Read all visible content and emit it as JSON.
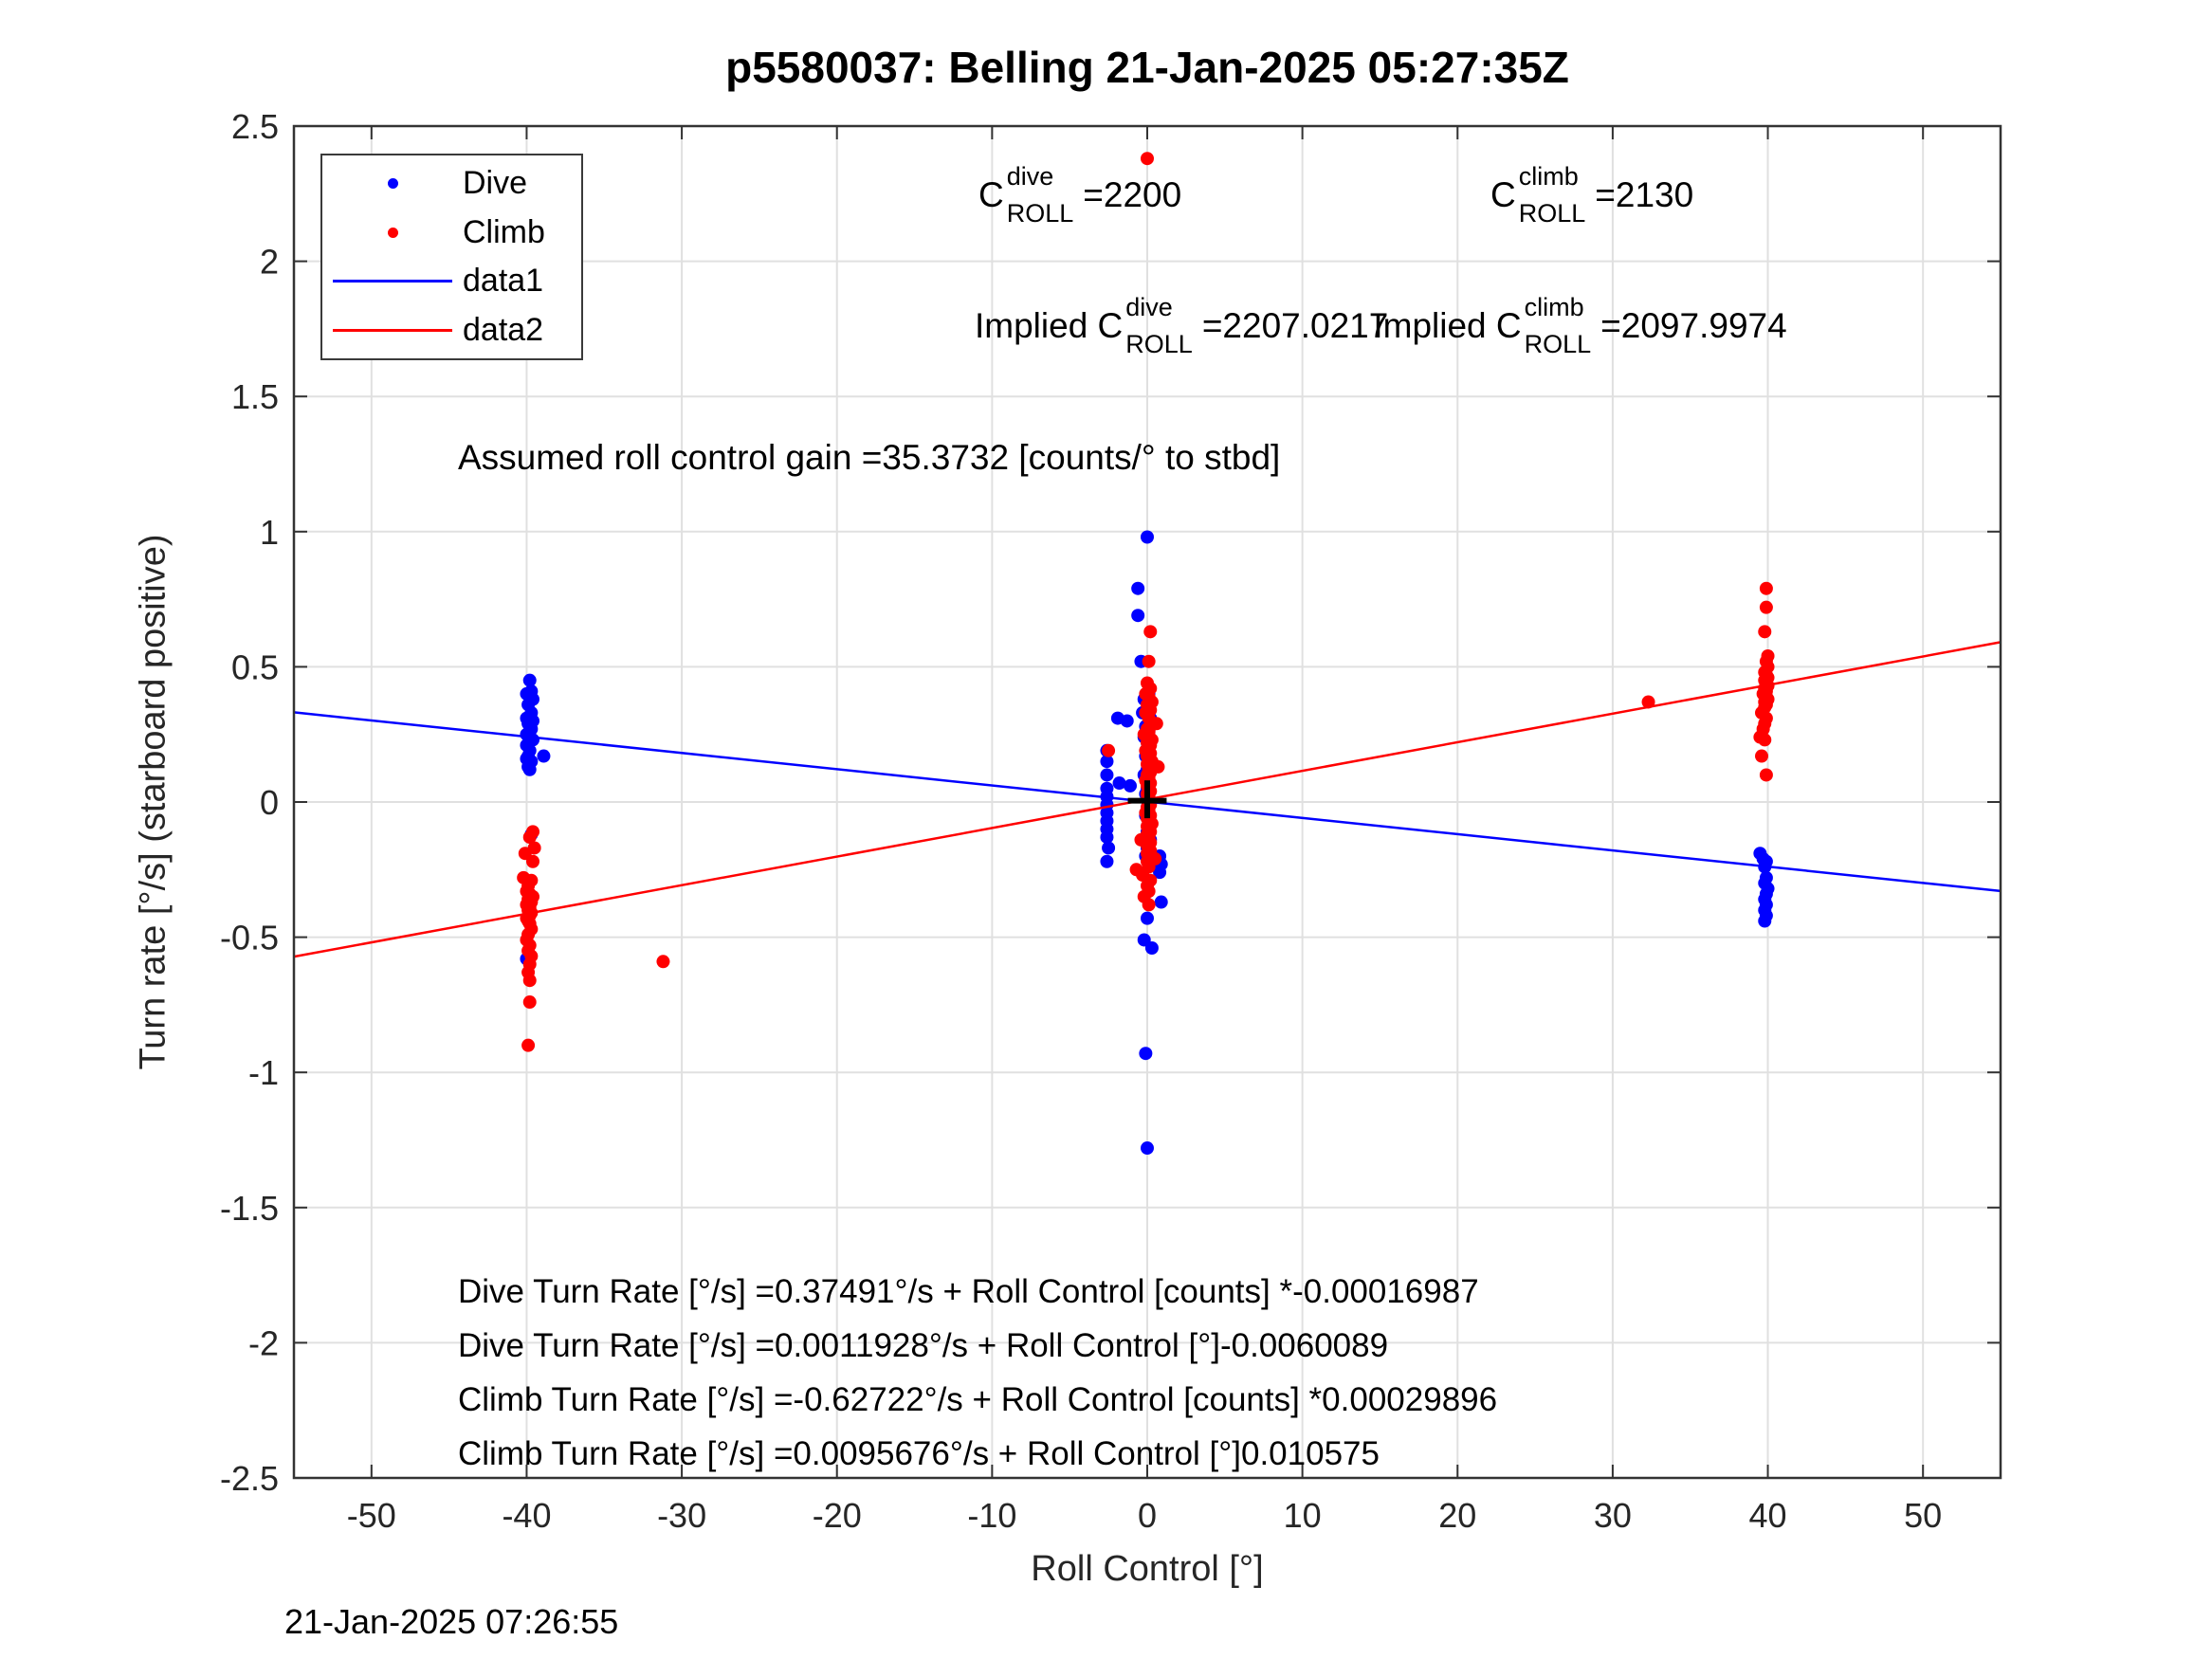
{
  "figure": {
    "title": "p5580037: Belling 21-Jan-2025 05:27:35Z",
    "footer_timestamp": "21-Jan-2025 07:26:55"
  },
  "annotations": {
    "cdive": {
      "prefix": "C",
      "sup": "dive",
      "sub": "ROLL",
      "value": "=2200"
    },
    "cclimb": {
      "prefix": "C",
      "sup": "climb",
      "sub": "ROLL",
      "value": "=2130"
    },
    "implied_dive": {
      "prefix": "Implied C",
      "sup": "dive",
      "sub": "ROLL",
      "value": "=2207.0217"
    },
    "implied_climb": {
      "prefix": "Implied C",
      "sup": "climb",
      "sub": "ROLL",
      "value": "=2097.9974"
    },
    "assumed_gain": "Assumed roll control gain =35.3732 [counts/° to stbd]",
    "equations": [
      "Dive Turn Rate [°/s] =0.37491°/s + Roll Control [counts] *-0.00016987",
      "Dive Turn Rate [°/s] =0.0011928°/s + Roll Control [°]-0.0060089",
      "Climb Turn Rate [°/s] =-0.62722°/s + Roll Control [counts] *0.00029896",
      "Climb Turn Rate [°/s] =0.0095676°/s + Roll Control [°]0.010575"
    ]
  },
  "legend": {
    "items": [
      {
        "label": "Dive",
        "type": "dot",
        "color": "#0000ff"
      },
      {
        "label": "Climb",
        "type": "dot",
        "color": "#ff0000"
      },
      {
        "label": "data1",
        "type": "line",
        "color": "#0000ff"
      },
      {
        "label": "data2",
        "type": "line",
        "color": "#ff0000"
      }
    ]
  },
  "chart_data": {
    "type": "scatter",
    "title": "p5580037: Belling 21-Jan-2025 05:27:35Z",
    "xlabel": "Roll Control [°]",
    "ylabel": "Turn rate [°/s] (starboard positive)",
    "xlim": [
      -55,
      55
    ],
    "ylim": [
      -2.5,
      2.5
    ],
    "grid": true,
    "grid_color": "#e0e0e0",
    "axis_color": "#333333",
    "tick_label_color": "#262626",
    "xticks": [
      -50,
      -40,
      -30,
      -20,
      -10,
      0,
      10,
      20,
      30,
      40,
      50
    ],
    "xticklabels": [
      "-50",
      "-40",
      "-30",
      "-20",
      "-10",
      "0",
      "10",
      "20",
      "30",
      "40",
      "50"
    ],
    "yticks": [
      -2.5,
      -2,
      -1.5,
      -1,
      -0.5,
      0,
      0.5,
      1,
      1.5,
      2,
      2.5
    ],
    "yticklabels": [
      "-2.5",
      "-2",
      "-1.5",
      "-1",
      "-0.5",
      "0",
      "0.5",
      "1",
      "1.5",
      "2",
      "2.5"
    ],
    "series": [
      {
        "name": "Dive",
        "type": "scatter",
        "color": "#0000ff",
        "marker_radius": 7,
        "points": [
          [
            -39.8,
            0.45
          ],
          [
            -39.7,
            0.41
          ],
          [
            -40.0,
            0.4
          ],
          [
            -39.6,
            0.38
          ],
          [
            -39.9,
            0.36
          ],
          [
            -39.7,
            0.33
          ],
          [
            -40.0,
            0.31
          ],
          [
            -39.6,
            0.3
          ],
          [
            -39.9,
            0.29
          ],
          [
            -39.7,
            0.27
          ],
          [
            -40.0,
            0.25
          ],
          [
            -39.8,
            0.24
          ],
          [
            -39.6,
            0.23
          ],
          [
            -40.0,
            0.21
          ],
          [
            -39.8,
            0.19
          ],
          [
            -39.9,
            0.17
          ],
          [
            -38.9,
            0.17
          ],
          [
            -40.0,
            0.16
          ],
          [
            -39.7,
            0.15
          ],
          [
            -39.9,
            0.13
          ],
          [
            -39.8,
            0.12
          ],
          [
            -39.7,
            -0.12
          ],
          [
            -40.0,
            -0.58
          ],
          [
            0.0,
            0.98
          ],
          [
            -0.6,
            0.79
          ],
          [
            -0.6,
            0.69
          ],
          [
            -0.4,
            0.52
          ],
          [
            0.1,
            0.4
          ],
          [
            -0.2,
            0.38
          ],
          [
            0.1,
            0.36
          ],
          [
            -0.3,
            0.33
          ],
          [
            -1.3,
            0.3
          ],
          [
            0.2,
            0.31
          ],
          [
            -1.9,
            0.31
          ],
          [
            -0.1,
            0.28
          ],
          [
            0.1,
            0.26
          ],
          [
            -0.2,
            0.24
          ],
          [
            0.0,
            0.22
          ],
          [
            0.1,
            0.2
          ],
          [
            -0.1,
            0.17
          ],
          [
            0.2,
            0.15
          ],
          [
            0.0,
            0.12
          ],
          [
            -0.2,
            0.1
          ],
          [
            0.1,
            0.08
          ],
          [
            0.0,
            0.05
          ],
          [
            -0.1,
            0.03
          ],
          [
            0.1,
            0.01
          ],
          [
            0.0,
            -0.02
          ],
          [
            -0.1,
            -0.05
          ],
          [
            0.1,
            -0.08
          ],
          [
            0.0,
            -0.11
          ],
          [
            0.2,
            -0.14
          ],
          [
            0.0,
            -0.17
          ],
          [
            -0.1,
            -0.2
          ],
          [
            0.1,
            -0.23
          ],
          [
            -2.6,
            0.19
          ],
          [
            -2.6,
            0.15
          ],
          [
            -2.6,
            0.1
          ],
          [
            -1.8,
            0.07
          ],
          [
            -1.1,
            0.06
          ],
          [
            -2.6,
            0.05
          ],
          [
            -2.6,
            0.02
          ],
          [
            -2.6,
            -0.01
          ],
          [
            -2.6,
            -0.04
          ],
          [
            -2.6,
            -0.07
          ],
          [
            -2.6,
            -0.1
          ],
          [
            -2.6,
            -0.13
          ],
          [
            -2.5,
            -0.17
          ],
          [
            -2.6,
            -0.22
          ],
          [
            0.8,
            -0.2
          ],
          [
            0.9,
            -0.23
          ],
          [
            0.8,
            -0.26
          ],
          [
            0.9,
            -0.37
          ],
          [
            0.0,
            -0.43
          ],
          [
            -0.2,
            -0.51
          ],
          [
            0.3,
            -0.54
          ],
          [
            -0.1,
            -0.93
          ],
          [
            0.0,
            -1.28
          ],
          [
            39.5,
            -0.19
          ],
          [
            39.7,
            -0.21
          ],
          [
            39.9,
            -0.22
          ],
          [
            39.8,
            -0.24
          ],
          [
            39.9,
            -0.28
          ],
          [
            39.8,
            -0.3
          ],
          [
            40.0,
            -0.32
          ],
          [
            39.9,
            -0.34
          ],
          [
            39.8,
            -0.36
          ],
          [
            39.9,
            -0.38
          ],
          [
            39.8,
            -0.4
          ],
          [
            39.9,
            -0.42
          ],
          [
            39.8,
            -0.44
          ]
        ]
      },
      {
        "name": "Climb",
        "type": "scatter",
        "color": "#ff0000",
        "marker_radius": 7,
        "points": [
          [
            0.0,
            2.38
          ],
          [
            -39.6,
            -0.11
          ],
          [
            -39.8,
            -0.13
          ],
          [
            -39.5,
            -0.17
          ],
          [
            -40.1,
            -0.19
          ],
          [
            -39.6,
            -0.22
          ],
          [
            -40.2,
            -0.28
          ],
          [
            -39.7,
            -0.29
          ],
          [
            -39.9,
            -0.31
          ],
          [
            -40.0,
            -0.33
          ],
          [
            -39.8,
            -0.34
          ],
          [
            -39.6,
            -0.35
          ],
          [
            -39.9,
            -0.36
          ],
          [
            -39.7,
            -0.37
          ],
          [
            -40.0,
            -0.38
          ],
          [
            -39.8,
            -0.39
          ],
          [
            -39.9,
            -0.4
          ],
          [
            -39.7,
            -0.41
          ],
          [
            -39.8,
            -0.42
          ],
          [
            -40.0,
            -0.43
          ],
          [
            -39.9,
            -0.44
          ],
          [
            -39.8,
            -0.45
          ],
          [
            -39.7,
            -0.47
          ],
          [
            -39.9,
            -0.49
          ],
          [
            -40.0,
            -0.51
          ],
          [
            -39.8,
            -0.53
          ],
          [
            -39.9,
            -0.55
          ],
          [
            -39.7,
            -0.57
          ],
          [
            -39.8,
            -0.6
          ],
          [
            -39.9,
            -0.63
          ],
          [
            -39.8,
            -0.66
          ],
          [
            -39.8,
            -0.74
          ],
          [
            -39.9,
            -0.9
          ],
          [
            -31.2,
            -0.59
          ],
          [
            0.2,
            0.63
          ],
          [
            0.1,
            0.52
          ],
          [
            0.0,
            0.44
          ],
          [
            0.2,
            0.42
          ],
          [
            -0.1,
            0.4
          ],
          [
            0.1,
            0.39
          ],
          [
            0.3,
            0.37
          ],
          [
            0.0,
            0.36
          ],
          [
            0.2,
            0.34
          ],
          [
            -0.1,
            0.33
          ],
          [
            0.1,
            0.31
          ],
          [
            0.6,
            0.29
          ],
          [
            0.2,
            0.28
          ],
          [
            0.0,
            0.27
          ],
          [
            0.1,
            0.26
          ],
          [
            -0.2,
            0.25
          ],
          [
            0.1,
            0.24
          ],
          [
            0.3,
            0.23
          ],
          [
            0.0,
            0.22
          ],
          [
            0.2,
            0.21
          ],
          [
            0.1,
            0.2
          ],
          [
            -0.1,
            0.19
          ],
          [
            -2.5,
            0.19
          ],
          [
            0.2,
            0.18
          ],
          [
            0.0,
            0.17
          ],
          [
            0.1,
            0.16
          ],
          [
            0.3,
            0.15
          ],
          [
            0.0,
            0.14
          ],
          [
            0.7,
            0.13
          ],
          [
            0.1,
            0.12
          ],
          [
            0.2,
            0.11
          ],
          [
            0.0,
            0.1
          ],
          [
            0.1,
            0.09
          ],
          [
            -0.1,
            0.08
          ],
          [
            0.2,
            0.07
          ],
          [
            0.0,
            0.06
          ],
          [
            0.1,
            0.05
          ],
          [
            0.2,
            0.04
          ],
          [
            0.0,
            0.03
          ],
          [
            0.1,
            0.02
          ],
          [
            0.0,
            0.01
          ],
          [
            0.1,
            0.0
          ],
          [
            0.2,
            -0.01
          ],
          [
            0.0,
            -0.02
          ],
          [
            0.1,
            -0.03
          ],
          [
            -0.1,
            -0.04
          ],
          [
            0.2,
            -0.05
          ],
          [
            0.0,
            -0.06
          ],
          [
            0.1,
            -0.07
          ],
          [
            0.3,
            -0.08
          ],
          [
            0.0,
            -0.09
          ],
          [
            0.1,
            -0.1
          ],
          [
            0.2,
            -0.11
          ],
          [
            0.0,
            -0.12
          ],
          [
            0.1,
            -0.13
          ],
          [
            -0.4,
            -0.14
          ],
          [
            0.2,
            -0.15
          ],
          [
            0.0,
            -0.16
          ],
          [
            0.1,
            -0.17
          ],
          [
            0.2,
            -0.18
          ],
          [
            0.0,
            -0.19
          ],
          [
            0.1,
            -0.2
          ],
          [
            0.5,
            -0.21
          ],
          [
            0.0,
            -0.22
          ],
          [
            0.1,
            -0.24
          ],
          [
            -0.7,
            -0.25
          ],
          [
            -0.3,
            -0.27
          ],
          [
            0.2,
            -0.29
          ],
          [
            0.0,
            -0.31
          ],
          [
            0.1,
            -0.33
          ],
          [
            -0.2,
            -0.35
          ],
          [
            0.1,
            -0.38
          ],
          [
            32.3,
            0.37
          ],
          [
            39.9,
            0.79
          ],
          [
            39.9,
            0.72
          ],
          [
            39.8,
            0.63
          ],
          [
            40.0,
            0.54
          ],
          [
            39.9,
            0.52
          ],
          [
            40.0,
            0.5
          ],
          [
            39.8,
            0.48
          ],
          [
            39.9,
            0.47
          ],
          [
            40.0,
            0.46
          ],
          [
            39.8,
            0.45
          ],
          [
            39.9,
            0.44
          ],
          [
            40.0,
            0.43
          ],
          [
            39.8,
            0.42
          ],
          [
            39.9,
            0.41
          ],
          [
            39.7,
            0.4
          ],
          [
            39.9,
            0.39
          ],
          [
            40.0,
            0.38
          ],
          [
            39.8,
            0.37
          ],
          [
            39.9,
            0.36
          ],
          [
            39.8,
            0.35
          ],
          [
            39.6,
            0.33
          ],
          [
            39.9,
            0.31
          ],
          [
            39.8,
            0.29
          ],
          [
            39.7,
            0.27
          ],
          [
            39.5,
            0.24
          ],
          [
            39.8,
            0.23
          ],
          [
            39.6,
            0.17
          ],
          [
            39.9,
            0.1
          ]
        ]
      },
      {
        "name": "data1",
        "type": "line",
        "color": "#0000ff",
        "line_width": 2.5,
        "intercept": 0.0011928,
        "slope": -0.0060089
      },
      {
        "name": "data2",
        "type": "line",
        "color": "#ff0000",
        "line_width": 2.5,
        "intercept": 0.0095676,
        "slope": 0.010575
      }
    ],
    "mean_marker": {
      "x": 0,
      "y": 0.005,
      "half_width_deg": 1.25,
      "up": 0.075,
      "down": 0.065,
      "color": "#000000",
      "stroke_width": 6
    }
  }
}
